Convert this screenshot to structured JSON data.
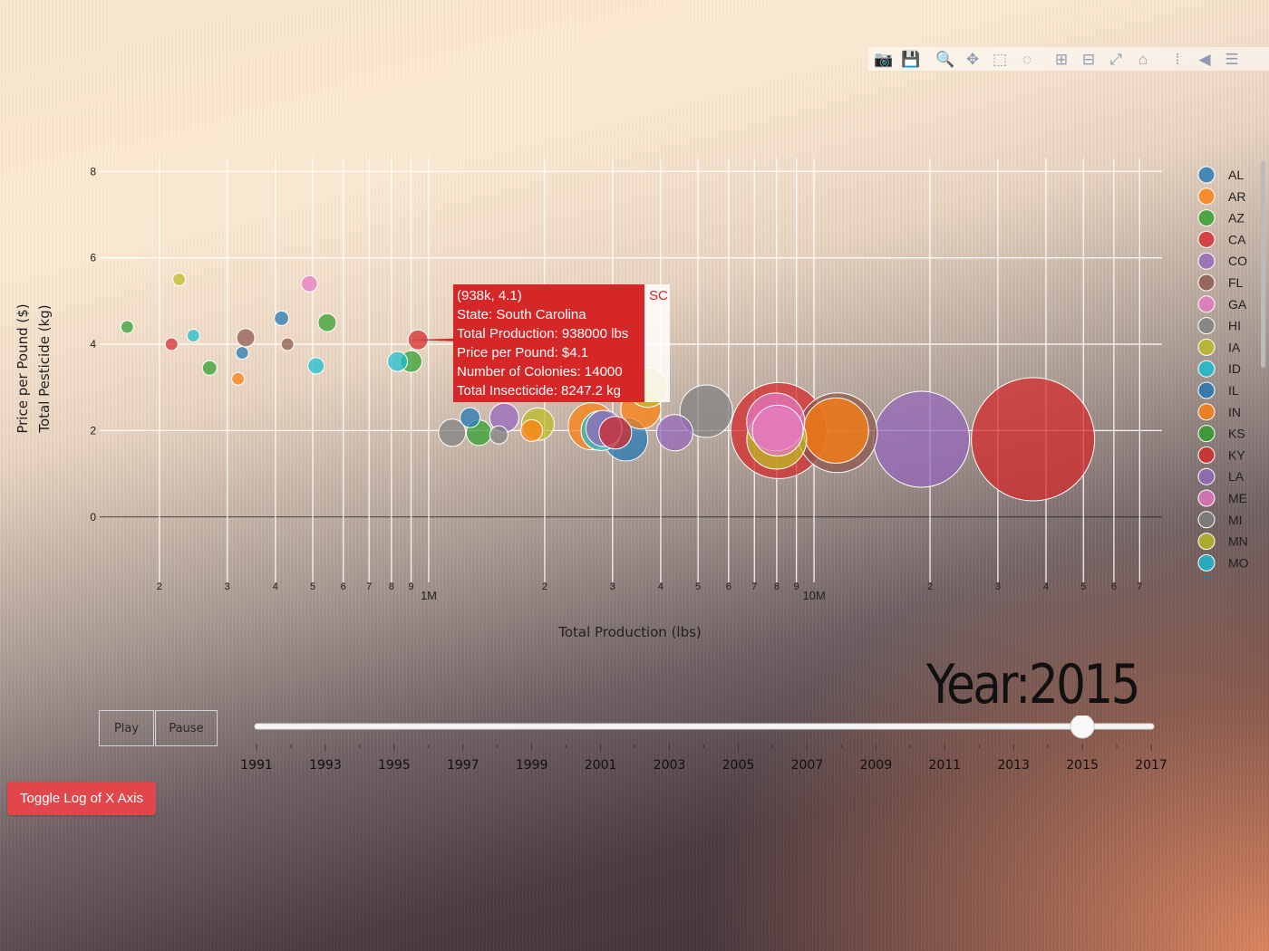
{
  "modebar": {
    "icons": [
      "camera-icon",
      "save-icon",
      "zoom-icon",
      "pan-icon",
      "box-select-icon",
      "lasso-icon",
      "zoom-in-icon",
      "zoom-out-icon",
      "autoscale-icon",
      "home-icon",
      "spike-lines-icon",
      "hover-closest-icon",
      "hover-compare-icon"
    ]
  },
  "chart_data": {
    "type": "scatter",
    "xlabel": "Total Production (lbs)",
    "ylabel": [
      "Price per Pound ($)",
      "Total Pesticide (kg)"
    ],
    "x_scale": "log",
    "xlim": [
      140000,
      80000000
    ],
    "ylim": [
      -1.2,
      8.3
    ],
    "y_ticks": [
      0,
      2,
      4,
      6,
      8
    ],
    "x_major_ticks": [
      {
        "value": 1000000,
        "label": "1M"
      },
      {
        "value": 10000000,
        "label": "10M"
      }
    ],
    "x_minor_ticks": [
      {
        "value": 200000,
        "label": "2"
      },
      {
        "value": 300000,
        "label": "3"
      },
      {
        "value": 400000,
        "label": "4"
      },
      {
        "value": 500000,
        "label": "5"
      },
      {
        "value": 600000,
        "label": "6"
      },
      {
        "value": 700000,
        "label": "7"
      },
      {
        "value": 800000,
        "label": "8"
      },
      {
        "value": 900000,
        "label": "9"
      },
      {
        "value": 2000000,
        "label": "2"
      },
      {
        "value": 3000000,
        "label": "3"
      },
      {
        "value": 4000000,
        "label": "4"
      },
      {
        "value": 5000000,
        "label": "5"
      },
      {
        "value": 6000000,
        "label": "6"
      },
      {
        "value": 7000000,
        "label": "7"
      },
      {
        "value": 8000000,
        "label": "8"
      },
      {
        "value": 9000000,
        "label": "9"
      },
      {
        "value": 20000000,
        "label": "2"
      },
      {
        "value": 30000000,
        "label": "3"
      },
      {
        "value": 40000000,
        "label": "4"
      },
      {
        "value": 50000000,
        "label": "5"
      },
      {
        "value": 60000000,
        "label": "6"
      },
      {
        "value": 70000000,
        "label": "7"
      }
    ],
    "grid": true,
    "legend_position": "right",
    "legend": [
      {
        "name": "AL",
        "color": "#1f77b4"
      },
      {
        "name": "AR",
        "color": "#ff7f0e"
      },
      {
        "name": "AZ",
        "color": "#2ca02c"
      },
      {
        "name": "CA",
        "color": "#d62728"
      },
      {
        "name": "CO",
        "color": "#9467bd"
      },
      {
        "name": "FL",
        "color": "#8c564b"
      },
      {
        "name": "GA",
        "color": "#e377c2"
      },
      {
        "name": "HI",
        "color": "#7f7f7f"
      },
      {
        "name": "IA",
        "color": "#bcbd22"
      },
      {
        "name": "ID",
        "color": "#17becf"
      },
      {
        "name": "IL",
        "color": "#1f77b4"
      },
      {
        "name": "IN",
        "color": "#ff7f0e"
      },
      {
        "name": "KS",
        "color": "#2ca02c"
      },
      {
        "name": "KY",
        "color": "#d62728"
      },
      {
        "name": "LA",
        "color": "#9467bd"
      },
      {
        "name": "ME",
        "color": "#e377c2"
      },
      {
        "name": "MI",
        "color": "#7f7f7f"
      },
      {
        "name": "MN",
        "color": "#bcbd22"
      },
      {
        "name": "MO",
        "color": "#17becf"
      }
    ],
    "points": [
      {
        "x": 165000,
        "y": 4.4,
        "color": "#2ca02c",
        "size": 7
      },
      {
        "x": 225000,
        "y": 5.5,
        "color": "#bcbd22",
        "size": 7
      },
      {
        "x": 215000,
        "y": 4.0,
        "color": "#d62728",
        "size": 7
      },
      {
        "x": 245000,
        "y": 4.2,
        "color": "#17becf",
        "size": 7
      },
      {
        "x": 270000,
        "y": 3.45,
        "color": "#2ca02c",
        "size": 8
      },
      {
        "x": 320000,
        "y": 3.2,
        "color": "#ff7f0e",
        "size": 7
      },
      {
        "x": 328000,
        "y": 3.8,
        "color": "#1f77b4",
        "size": 7
      },
      {
        "x": 335000,
        "y": 4.15,
        "color": "#8c564b",
        "size": 10
      },
      {
        "x": 415000,
        "y": 4.6,
        "color": "#1f77b4",
        "size": 8
      },
      {
        "x": 430000,
        "y": 4.0,
        "color": "#8c564b",
        "size": 7
      },
      {
        "x": 490000,
        "y": 5.4,
        "color": "#e377c2",
        "size": 9
      },
      {
        "x": 510000,
        "y": 3.5,
        "color": "#17becf",
        "size": 9
      },
      {
        "x": 545000,
        "y": 4.5,
        "color": "#2ca02c",
        "size": 10
      },
      {
        "x": 830000,
        "y": 3.6,
        "color": "#17becf",
        "size": 11
      },
      {
        "x": 900000,
        "y": 3.6,
        "color": "#2ca02c",
        "size": 12
      },
      {
        "x": 938000,
        "y": 4.1,
        "color": "#d62728",
        "size": 11
      },
      {
        "x": 1150000,
        "y": 1.95,
        "color": "#7f7f7f",
        "size": 15
      },
      {
        "x": 1280000,
        "y": 2.3,
        "color": "#1f77b4",
        "size": 11
      },
      {
        "x": 1350000,
        "y": 1.95,
        "color": "#2ca02c",
        "size": 14
      },
      {
        "x": 1520000,
        "y": 1.9,
        "color": "#7f7f7f",
        "size": 10
      },
      {
        "x": 1570000,
        "y": 2.3,
        "color": "#9467bd",
        "size": 16
      },
      {
        "x": 1850000,
        "y": 2.0,
        "color": "#ff7f0e",
        "size": 12
      },
      {
        "x": 1920000,
        "y": 2.15,
        "color": "#bcbd22",
        "size": 18
      },
      {
        "x": 2650000,
        "y": 2.1,
        "color": "#ff7f0e",
        "size": 26
      },
      {
        "x": 2800000,
        "y": 2.0,
        "color": "#17becf",
        "size": 22
      },
      {
        "x": 2850000,
        "y": 2.05,
        "color": "#9467bd",
        "size": 20
      },
      {
        "x": 3250000,
        "y": 1.8,
        "color": "#1f77b4",
        "size": 24
      },
      {
        "x": 3050000,
        "y": 1.95,
        "color": "#d62728",
        "size": 18
      },
      {
        "x": 3550000,
        "y": 2.5,
        "color": "#ff7f0e",
        "size": 22
      },
      {
        "x": 3700000,
        "y": 3.0,
        "color": "#bcbd22",
        "size": 22
      },
      {
        "x": 4350000,
        "y": 1.95,
        "color": "#9467bd",
        "size": 20
      },
      {
        "x": 5250000,
        "y": 2.45,
        "color": "#7f7f7f",
        "size": 29
      },
      {
        "x": 8100000,
        "y": 2.0,
        "color": "#d62728",
        "size": 53
      },
      {
        "x": 8000000,
        "y": 1.8,
        "color": "#bcbd22",
        "size": 33
      },
      {
        "x": 7950000,
        "y": 2.2,
        "color": "#e377c2",
        "size": 32
      },
      {
        "x": 8050000,
        "y": 2.0,
        "color": "#e377c2",
        "size": 28
      },
      {
        "x": 11500000,
        "y": 1.95,
        "color": "#8c564b",
        "size": 44
      },
      {
        "x": 11400000,
        "y": 2.0,
        "color": "#ff7f0e",
        "size": 36
      },
      {
        "x": 19000000,
        "y": 1.8,
        "color": "#9467bd",
        "size": 53
      },
      {
        "x": 37000000,
        "y": 1.8,
        "color": "#d62728",
        "size": 68
      }
    ],
    "tooltip": {
      "lines": [
        "(938k, 4.1)",
        "State: South Carolina",
        "Total Production: 938000 lbs",
        "Price per Pound: $4.1",
        "Number of Colonies: 14000",
        "Total Insecticide: 8247.2 kg"
      ],
      "tag": "SC",
      "x": 938000,
      "y": 4.1,
      "color": "#d62728"
    }
  },
  "animation": {
    "year_label": "Year:2015",
    "play_label": "Play",
    "pause_label": "Pause",
    "slider_value": 2015,
    "slider_min": 1991,
    "slider_max": 2017,
    "slider_ticks": [
      "1991",
      "1993",
      "1995",
      "1997",
      "1999",
      "2001",
      "2003",
      "2005",
      "2007",
      "2009",
      "2011",
      "2013",
      "2015",
      "2017"
    ]
  },
  "toggle_button_label": "Toggle Log of X Axis"
}
